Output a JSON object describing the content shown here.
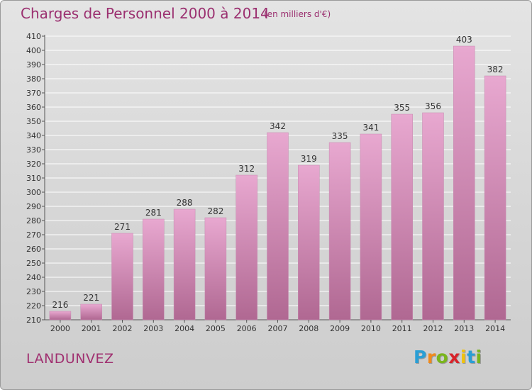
{
  "title": "Charges de Personnel 2000 à 2014",
  "subtitle": "(en milliers d'€)",
  "commune": "LANDUNVEZ",
  "logo": {
    "text": "Proxiti",
    "letters": [
      {
        "char": "P",
        "color": "#2a9fd6"
      },
      {
        "char": "r",
        "color": "#f08a1c"
      },
      {
        "char": "o",
        "color": "#7ab51d"
      },
      {
        "char": "x",
        "color": "#d8232a"
      },
      {
        "char": "i",
        "color": "#f0c20c"
      },
      {
        "char": "t",
        "color": "#2a9fd6"
      },
      {
        "char": "i",
        "color": "#7ab51d"
      }
    ]
  },
  "colors": {
    "bar_top": "#e8a8d0",
    "bar_bottom": "#b06892",
    "bar_edge": "#c58ab0",
    "grid": "#ffffff",
    "text": "#333333"
  },
  "chart_data": {
    "type": "bar",
    "categories": [
      "2000",
      "2001",
      "2002",
      "2003",
      "2004",
      "2005",
      "2006",
      "2007",
      "2008",
      "2009",
      "2010",
      "2011",
      "2012",
      "2013",
      "2014"
    ],
    "values": [
      216,
      221,
      271,
      281,
      288,
      282,
      312,
      342,
      319,
      335,
      341,
      355,
      356,
      403,
      382
    ],
    "ylim": [
      210,
      410
    ],
    "yticks": [
      210,
      220,
      230,
      240,
      250,
      260,
      270,
      280,
      290,
      300,
      310,
      320,
      330,
      340,
      350,
      360,
      370,
      380,
      390,
      400,
      410
    ],
    "grid": true,
    "data_labels": true
  }
}
